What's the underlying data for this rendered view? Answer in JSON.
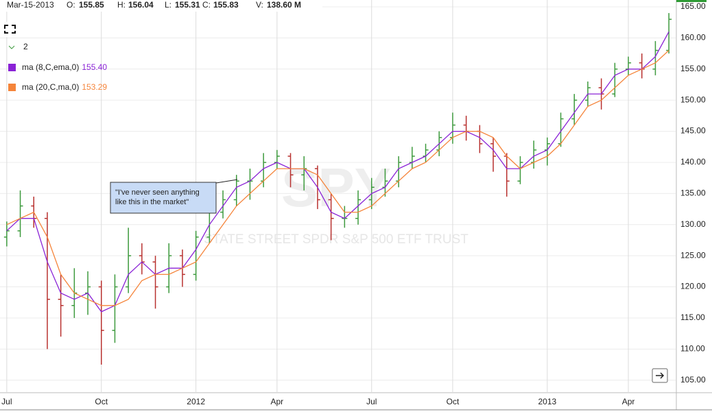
{
  "header": {
    "date": "Mar-15-2013",
    "items": [
      {
        "label": "O:",
        "value": "155.85"
      },
      {
        "label": "H:",
        "value": "156.04"
      },
      {
        "label": "L:",
        "value": "155.31"
      },
      {
        "label": "C:",
        "value": "155.83"
      },
      {
        "label": "V:",
        "value": "138.60 M"
      }
    ]
  },
  "legend": {
    "count": "2"
  },
  "annotation": "\"I've never seen anything like this in the market\"",
  "watermark": {
    "symbol": "SPY",
    "name": "STATE STREET SPDR S&P 500 ETF TRUST"
  },
  "chart_data": {
    "type": "ohlc",
    "categories": [
      "Jul",
      null,
      null,
      null,
      null,
      null,
      null,
      "Oct",
      null,
      null,
      null,
      null,
      null,
      null,
      "2012",
      null,
      null,
      null,
      null,
      null,
      "Apr",
      null,
      null,
      null,
      null,
      null,
      null,
      "Jul",
      null,
      null,
      null,
      null,
      null,
      "Oct",
      null,
      null,
      null,
      null,
      null,
      null,
      "2013",
      null,
      null,
      null,
      null,
      null,
      "Apr",
      null,
      null,
      null
    ],
    "open": [
      128,
      129,
      133,
      131,
      118,
      117,
      119,
      120,
      113,
      120,
      125,
      124,
      120,
      125,
      122,
      128,
      132,
      134,
      137,
      137,
      140,
      141,
      138,
      139,
      134,
      131,
      131,
      134,
      136,
      137,
      140,
      141,
      142,
      144,
      146,
      145,
      143,
      141,
      137,
      140,
      142,
      143,
      147,
      150,
      152,
      151,
      155,
      156,
      155,
      158
    ],
    "high": [
      130.5,
      135.5,
      134.5,
      132,
      122,
      123,
      122.5,
      121,
      122,
      129.5,
      127,
      125,
      127,
      126,
      129,
      133,
      135.5,
      138,
      139,
      141.5,
      142,
      141.5,
      141,
      139.5,
      135,
      133,
      135.5,
      137.5,
      139,
      141,
      142.5,
      143,
      145,
      148,
      147.5,
      146,
      144,
      141.5,
      141,
      143.5,
      144,
      148,
      151,
      153,
      153.5,
      156,
      157,
      157.5,
      159.5,
      164
    ],
    "low": [
      126.5,
      128,
      129.5,
      110,
      112,
      115,
      115.5,
      107.5,
      111,
      119,
      122,
      116.5,
      119,
      120,
      121,
      127,
      131,
      133,
      134,
      136,
      139,
      136,
      135.5,
      132.5,
      127.5,
      129.5,
      130,
      132.5,
      134.5,
      136,
      139,
      140,
      141,
      143,
      143.5,
      141.5,
      138.5,
      134.5,
      136.5,
      139,
      139.5,
      142.5,
      146,
      149,
      148.5,
      150.5,
      154,
      153.5,
      154,
      157.5
    ],
    "close": [
      129,
      133,
      131,
      118,
      117,
      119,
      120,
      113,
      120,
      125,
      124,
      120,
      125,
      122,
      128,
      132,
      134,
      137,
      137,
      140,
      141,
      138,
      139,
      134,
      131,
      131,
      134,
      136,
      137,
      140,
      141,
      142,
      144,
      146,
      145,
      143,
      141,
      137,
      140,
      142,
      143,
      147,
      150,
      152,
      151,
      155,
      156,
      155,
      158,
      163
    ],
    "up_color": "#3d9a3d",
    "down_color": "#b8312f",
    "series": [
      {
        "name": "ma (8,C,ema,0)",
        "legend_value": "155.40",
        "color": "#8a22d6",
        "values": [
          129,
          131,
          131,
          124,
          119,
          118,
          119,
          116,
          117,
          122,
          124,
          122,
          123,
          123,
          126,
          130,
          133,
          136,
          137,
          139,
          140,
          139,
          139,
          136,
          132,
          131,
          133,
          135,
          136,
          139,
          140,
          141,
          143,
          145,
          145,
          144,
          142,
          139,
          139,
          141,
          142,
          145,
          148,
          151,
          151,
          154,
          155,
          155,
          157,
          161
        ]
      },
      {
        "name": "ma (20,C,ma,0)",
        "legend_value": "153.29",
        "color": "#f5843a",
        "values": [
          130,
          131,
          132,
          128,
          122,
          119,
          118,
          117,
          117,
          118,
          121,
          122,
          122,
          123,
          124,
          127,
          130,
          133,
          135,
          137,
          139,
          139,
          139,
          138,
          135,
          132,
          132,
          133,
          135,
          137,
          139,
          140,
          142,
          144,
          145,
          145,
          144,
          141,
          139,
          140,
          141,
          143,
          146,
          149,
          150,
          152,
          154,
          155,
          156,
          158
        ]
      }
    ],
    "ylim": [
      103.1,
      166.1
    ],
    "yticks": [
      {
        "value": 105,
        "label": "105.00"
      },
      {
        "value": 110,
        "label": "110.00"
      },
      {
        "value": 115,
        "label": "115.00"
      },
      {
        "value": 120,
        "label": "120.00"
      },
      {
        "value": 125,
        "label": "125.00"
      },
      {
        "value": 130,
        "label": "130.00"
      },
      {
        "value": 135,
        "label": "135.00"
      },
      {
        "value": 140,
        "label": "140.00"
      },
      {
        "value": 145,
        "label": "145.00"
      },
      {
        "value": 150,
        "label": "150.00"
      },
      {
        "value": 155,
        "label": "155.00"
      },
      {
        "value": 160,
        "label": "160.00"
      },
      {
        "value": 165,
        "label": "165.00"
      }
    ],
    "grid": true
  }
}
